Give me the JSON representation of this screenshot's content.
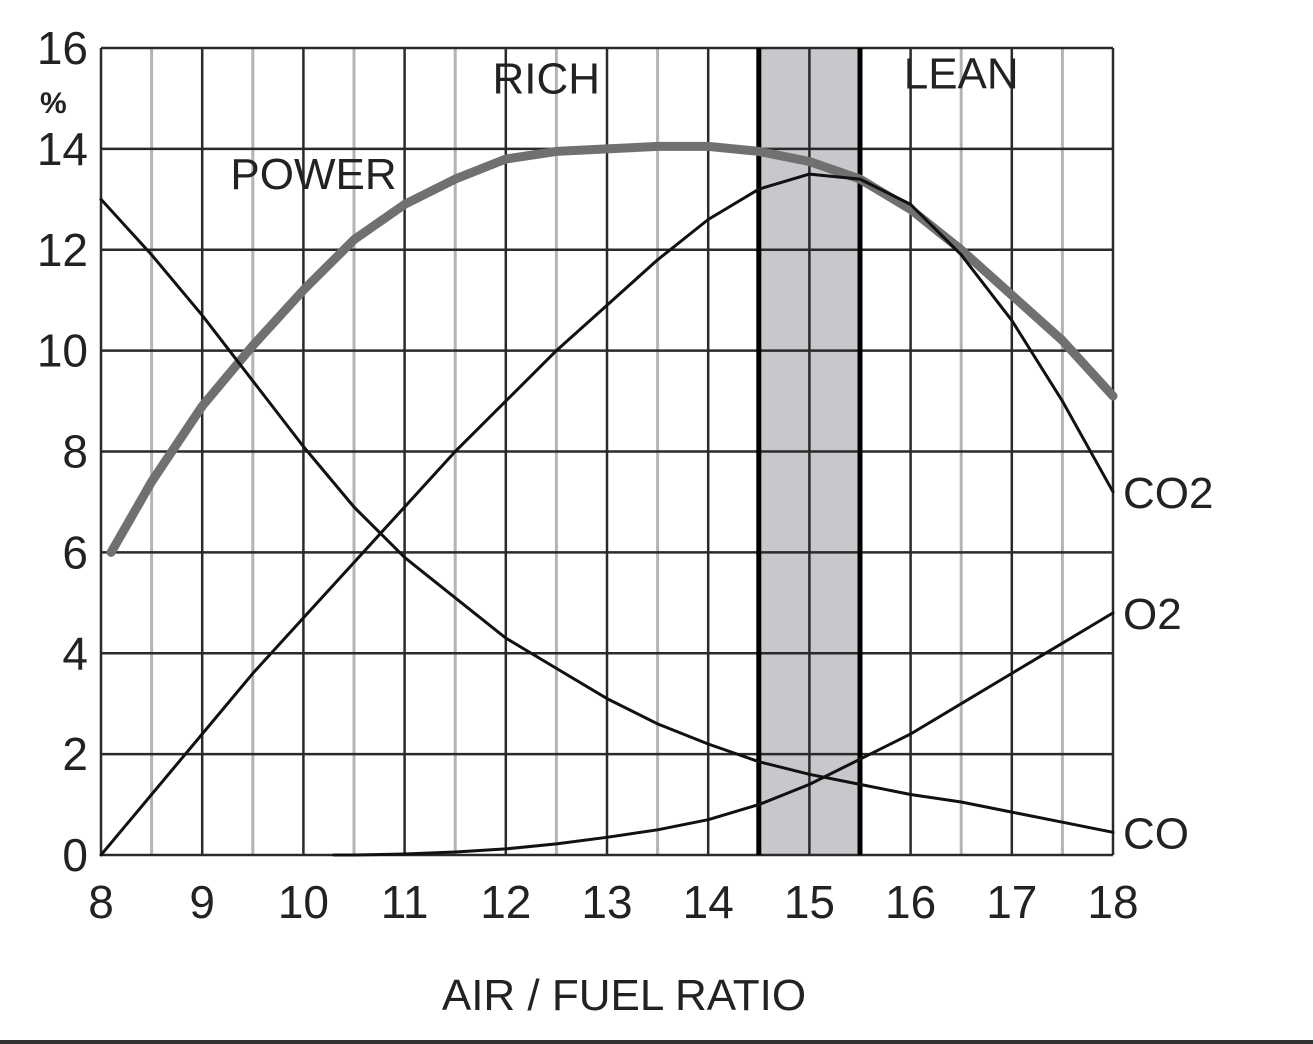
{
  "chart_data": {
    "type": "line",
    "title": "",
    "xlabel": "AIR / FUEL RATIO",
    "ylabel": "%",
    "xlim": [
      8,
      18
    ],
    "ylim": [
      0,
      16
    ],
    "x_ticks": [
      8,
      9,
      10,
      11,
      12,
      13,
      14,
      15,
      16,
      17,
      18
    ],
    "y_ticks": [
      0,
      2,
      4,
      6,
      8,
      10,
      12,
      14,
      16
    ],
    "minor_x": [
      8.5,
      9.5,
      10.5,
      11.5,
      12.5,
      13.5,
      14.5,
      15.5,
      16.5,
      17.5
    ],
    "grid": true,
    "legend": "none",
    "regions": [
      {
        "label": "RICH",
        "x": 12.4,
        "y": 15.1
      },
      {
        "label": "LEAN",
        "x": 16.5,
        "y": 15.2
      },
      {
        "label": "POWER",
        "x": 10.1,
        "y": 13.2
      }
    ],
    "shaded_band": {
      "x_start": 14.5,
      "x_end": 15.5,
      "color": "#c8c8cc"
    },
    "boundary_lines": [
      14.5,
      15.5
    ],
    "series": [
      {
        "key": "power",
        "color": "#707070",
        "x": [
          8.1,
          8.5,
          9,
          9.5,
          10,
          10.5,
          11,
          11.5,
          12,
          12.5,
          13,
          13.5,
          14,
          14.5,
          15,
          15.5,
          16,
          16.5,
          17,
          17.5,
          18
        ],
        "values": [
          6.0,
          7.4,
          8.9,
          10.1,
          11.2,
          12.2,
          12.9,
          13.4,
          13.8,
          13.95,
          14.0,
          14.05,
          14.05,
          13.95,
          13.75,
          13.4,
          12.8,
          12.0,
          11.1,
          10.2,
          9.1
        ]
      },
      {
        "key": "co2",
        "name": "CO2",
        "color": "#111111",
        "x": [
          8,
          8.5,
          9,
          9.5,
          10,
          10.5,
          11,
          11.5,
          12,
          12.5,
          13,
          13.5,
          14,
          14.5,
          15,
          15.5,
          16,
          16.5,
          17,
          17.5,
          18
        ],
        "values": [
          0,
          1.2,
          2.4,
          3.6,
          4.7,
          5.8,
          6.9,
          8.0,
          9.0,
          10.0,
          10.9,
          11.8,
          12.6,
          13.2,
          13.5,
          13.4,
          12.9,
          11.9,
          10.6,
          9.0,
          7.2
        ]
      },
      {
        "key": "co",
        "name": "CO",
        "color": "#111111",
        "x": [
          8,
          8.5,
          9,
          9.5,
          10,
          10.5,
          11,
          11.5,
          12,
          12.5,
          13,
          13.5,
          14,
          14.5,
          15,
          15.5,
          16,
          16.5,
          17,
          17.5,
          18
        ],
        "values": [
          13.0,
          11.9,
          10.7,
          9.4,
          8.1,
          6.9,
          5.9,
          5.1,
          4.3,
          3.7,
          3.1,
          2.6,
          2.2,
          1.85,
          1.6,
          1.4,
          1.2,
          1.05,
          0.85,
          0.65,
          0.45
        ]
      },
      {
        "key": "o2",
        "name": "O2",
        "color": "#111111",
        "x": [
          10.3,
          10.5,
          11,
          11.5,
          12,
          12.5,
          13,
          13.5,
          14,
          14.5,
          15,
          15.5,
          16,
          16.5,
          17,
          17.5,
          18
        ],
        "values": [
          0.0,
          0.0,
          0.02,
          0.06,
          0.12,
          0.22,
          0.35,
          0.5,
          0.7,
          1.0,
          1.4,
          1.9,
          2.4,
          3.0,
          3.6,
          4.2,
          4.8
        ]
      }
    ]
  }
}
